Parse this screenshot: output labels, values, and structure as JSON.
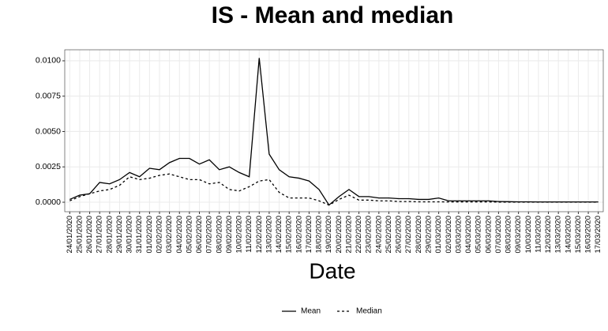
{
  "chart_data": {
    "type": "line",
    "title": "IS - Mean and median",
    "x_label": "Date",
    "categories": [
      "24/01/2020",
      "25/01/2020",
      "26/01/2020",
      "27/01/2020",
      "28/01/2020",
      "29/01/2020",
      "30/01/2020",
      "31/01/2020",
      "01/02/2020",
      "02/02/2020",
      "03/02/2020",
      "04/02/2020",
      "05/02/2020",
      "06/02/2020",
      "07/02/2020",
      "08/02/2020",
      "09/02/2020",
      "10/02/2020",
      "11/02/2020",
      "12/02/2020",
      "13/02/2020",
      "14/02/2020",
      "15/02/2020",
      "16/02/2020",
      "17/02/2020",
      "18/02/2020",
      "19/02/2020",
      "20/02/2020",
      "21/02/2020",
      "22/02/2020",
      "23/02/2020",
      "24/02/2020",
      "25/02/2020",
      "26/02/2020",
      "27/02/2020",
      "28/02/2020",
      "29/02/2020",
      "01/03/2020",
      "02/03/2020",
      "03/03/2020",
      "04/03/2020",
      "05/03/2020",
      "06/03/2020",
      "07/03/2020",
      "08/03/2020",
      "09/03/2020",
      "10/03/2020",
      "11/03/2020",
      "12/03/2020",
      "13/03/2020",
      "14/03/2020",
      "15/03/2020",
      "16/03/2020",
      "17/03/2020"
    ],
    "series": [
      {
        "name": "Mean",
        "color": "#000000",
        "linestyle": "solid",
        "values": [
          0.0002,
          0.0005,
          0.0006,
          0.0014,
          0.0013,
          0.0016,
          0.0021,
          0.0018,
          0.0024,
          0.0023,
          0.0028,
          0.0031,
          0.0031,
          0.0027,
          0.003,
          0.0023,
          0.0025,
          0.0021,
          0.0018,
          0.0102,
          0.0034,
          0.0023,
          0.0018,
          0.0017,
          0.0015,
          0.0009,
          -0.0002,
          0.0004,
          0.0009,
          0.0004,
          0.0004,
          0.0003,
          0.0003,
          0.00025,
          0.00025,
          0.0002,
          0.0002,
          0.0003,
          0.0001,
          0.0001,
          0.0001,
          0.0001,
          0.0001,
          5e-05,
          4e-05,
          3e-05,
          3e-05,
          2e-05,
          2e-05,
          2e-05,
          2e-05,
          2e-05,
          2e-05,
          2e-05
        ]
      },
      {
        "name": "Median",
        "color": "#000000",
        "linestyle": "dashed",
        "values": [
          0.0001,
          0.0004,
          0.0006,
          0.0008,
          0.0009,
          0.0012,
          0.0018,
          0.0016,
          0.0017,
          0.0019,
          0.002,
          0.0018,
          0.0016,
          0.0016,
          0.0013,
          0.0014,
          0.0009,
          0.0008,
          0.0011,
          0.0015,
          0.0016,
          0.0007,
          0.0003,
          0.0003,
          0.0003,
          0.0001,
          -0.0002,
          0.0002,
          0.0005,
          0.00015,
          0.00015,
          0.0001,
          0.0001,
          5e-05,
          5e-05,
          3e-05,
          3e-05,
          3e-05,
          2e-05,
          2e-05,
          2e-05,
          2e-05,
          2e-05,
          1e-05,
          1e-05,
          1e-05,
          1e-05,
          1e-05,
          1e-05,
          1e-05,
          1e-05,
          1e-05,
          1e-05,
          1e-05
        ]
      }
    ],
    "ylim": [
      -0.00067,
      0.01078
    ],
    "yticks": [
      {
        "value": 0,
        "label": "0.0000"
      },
      {
        "value": 0.0025,
        "label": "0.0025"
      },
      {
        "value": 0.005,
        "label": "0.0050"
      },
      {
        "value": 0.0075,
        "label": "0.0075"
      },
      {
        "value": 0.01,
        "label": "0.0100"
      }
    ],
    "grid": true,
    "legend": "bottom"
  }
}
